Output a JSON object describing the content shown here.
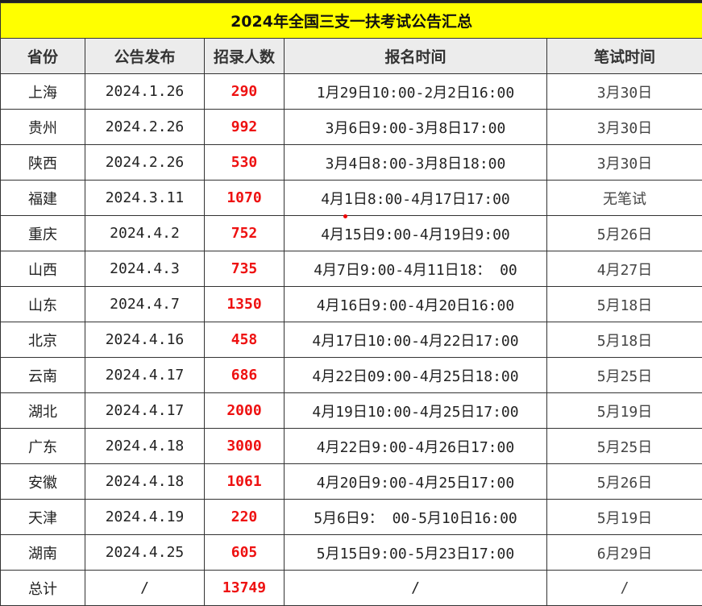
{
  "title": "2024年全国三支一扶考试公告汇总",
  "headers": [
    "省份",
    "公告发布",
    "招录人数",
    "报名时间",
    "笔试时间"
  ],
  "rows": [
    [
      "上海",
      "2024.1.26",
      "290",
      "1月29日10:00-2月2日16:00",
      "3月30日"
    ],
    [
      "贵州",
      "2024.2.26",
      "992",
      "3月6日9:00-3月8日17:00",
      "3月30日"
    ],
    [
      "陕西",
      "2024.2.26",
      "530",
      "3月4日8:00-3月8日18:00",
      "3月30日"
    ],
    [
      "福建",
      "2024.3.11",
      "1070",
      "4月1日8:00-4月17日17:00",
      "无笔试"
    ],
    [
      "重庆",
      "2024.4.2",
      "752",
      "4月15日9:00-4月19日9:00",
      "5月26日"
    ],
    [
      "山西",
      "2024.4.3",
      "735",
      "4月7日9:00-4月11日18： 00",
      "4月27日"
    ],
    [
      "山东",
      "2024.4.7",
      "1350",
      "4月16日9:00-4月20日16:00",
      "5月18日"
    ],
    [
      "北京",
      "2024.4.16",
      "458",
      "4月17日10:00-4月22日17:00",
      "5月18日"
    ],
    [
      "云南",
      "2024.4.17",
      "686",
      "4月22日09:00-4月25日18:00",
      "5月25日"
    ],
    [
      "湖北",
      "2024.4.17",
      "2000",
      "4月19日10:00-4月25日17:00",
      "5月19日"
    ],
    [
      "广东",
      "2024.4.18",
      "3000",
      "4月22日9:00-4月26日17:00",
      "5月25日"
    ],
    [
      "安徽",
      "2024.4.18",
      "1061",
      "4月20日9:00-4月25日17:00",
      "5月26日"
    ],
    [
      "天津",
      "2024.4.19",
      "220",
      "5月6日9： 00-5月10日16:00",
      "5月19日"
    ],
    [
      "湖南",
      "2024.4.25",
      "605",
      "5月15日9:00-5月23日17:00",
      "6月29日"
    ],
    [
      "总计",
      "/",
      "13749",
      "/",
      "/"
    ]
  ],
  "colors": {
    "title_bg": "#ffff00",
    "header_bg": "#ececec",
    "number": "#ee1111"
  }
}
